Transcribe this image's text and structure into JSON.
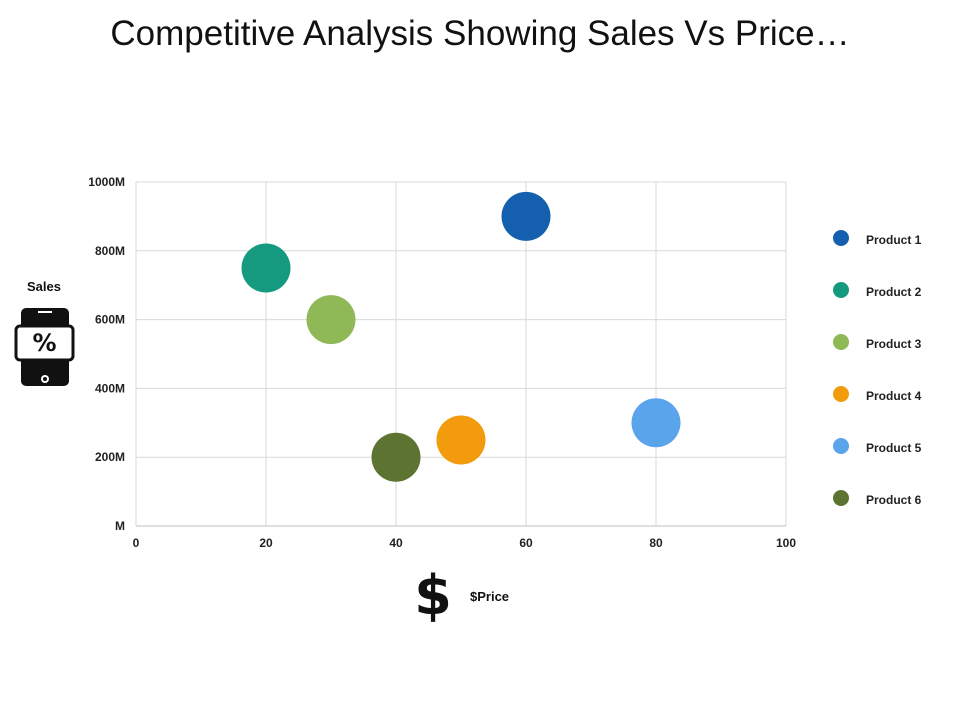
{
  "chart_data": {
    "type": "scatter",
    "title": "Competitive Analysis Showing Sales Vs Price…",
    "xlabel": "$Price",
    "ylabel": "Sales",
    "xlim": [
      0,
      100
    ],
    "ylim": [
      0,
      1000
    ],
    "x_ticks": [
      "0",
      "20",
      "40",
      "60",
      "80",
      "100"
    ],
    "y_ticks": [
      "M",
      "200M",
      "400M",
      "600M",
      "800M",
      "1000M"
    ],
    "grid": true,
    "legend_position": "right",
    "series": [
      {
        "name": "Product 1",
        "x": 60,
        "y": 900,
        "color": "#1560ae"
      },
      {
        "name": "Product 2",
        "x": 20,
        "y": 750,
        "color": "#159a80"
      },
      {
        "name": "Product 3",
        "x": 30,
        "y": 600,
        "color": "#8fb857"
      },
      {
        "name": "Product 4",
        "x": 50,
        "y": 250,
        "color": "#f29b0c"
      },
      {
        "name": "Product 5",
        "x": 80,
        "y": 300,
        "color": "#5aa4ec"
      },
      {
        "name": "Product 6",
        "x": 40,
        "y": 200,
        "color": "#5c7332"
      }
    ]
  },
  "icons": {
    "sales": "mobile-percent-icon",
    "price": "dollar-sign-icon"
  },
  "price_symbol": "$"
}
